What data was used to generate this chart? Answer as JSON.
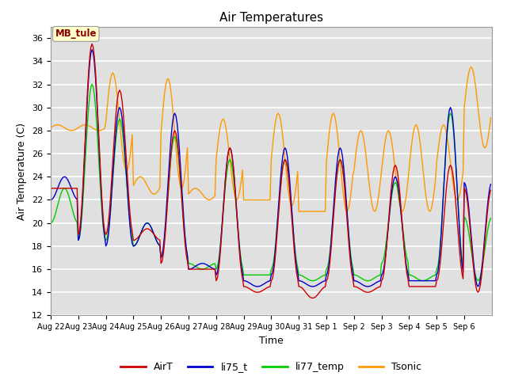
{
  "title": "Air Temperatures",
  "xlabel": "Time",
  "ylabel": "Air Temperature (C)",
  "ylim": [
    12,
    37
  ],
  "yticks": [
    12,
    14,
    16,
    18,
    20,
    22,
    24,
    26,
    28,
    30,
    32,
    34,
    36
  ],
  "colors": {
    "AirT": "#cc0000",
    "li75_t": "#0000cc",
    "li77_temp": "#00cc00",
    "Tsonic": "#ff9900"
  },
  "annotation_text": "MB_tule",
  "annotation_color": "#880000",
  "annotation_bg": "#ffffcc",
  "background_color": "#e0e0e0",
  "grid_color": "#ffffff",
  "xtick_labels": [
    "Aug 22",
    "Aug 23",
    "Aug 24",
    "Aug 25",
    "Aug 26",
    "Aug 27",
    "Aug 28",
    "Aug 29",
    "Aug 30",
    "Aug 31",
    "Sep 1",
    "Sep 2",
    "Sep 3",
    "Sep 4",
    "Sep 5",
    "Sep 6"
  ],
  "num_days": 16,
  "points_per_day": 24,
  "day_peaks_air": [
    23.0,
    35.5,
    31.5,
    19.5,
    28.0,
    16.0,
    26.5,
    14.0,
    25.5,
    13.5,
    25.5,
    14.0,
    25.0,
    14.5,
    25.0,
    14.0
  ],
  "day_troughs_air": [
    23.0,
    19.0,
    19.0,
    18.5,
    16.5,
    16.0,
    15.0,
    14.5,
    15.0,
    14.5,
    15.0,
    14.5,
    15.0,
    14.5,
    15.0,
    23.0
  ],
  "day_peaks_li75": [
    24.0,
    35.0,
    30.0,
    20.0,
    29.5,
    16.5,
    26.5,
    14.5,
    26.5,
    14.5,
    26.5,
    14.5,
    24.0,
    15.0,
    30.0,
    14.5
  ],
  "day_troughs_li75": [
    22.0,
    18.5,
    18.0,
    18.0,
    17.0,
    16.0,
    15.5,
    15.0,
    15.5,
    15.0,
    15.5,
    15.0,
    15.5,
    15.0,
    15.5,
    23.5
  ],
  "day_peaks_li77": [
    23.0,
    32.0,
    29.0,
    20.0,
    27.5,
    16.0,
    25.5,
    15.5,
    25.5,
    15.0,
    25.5,
    15.0,
    23.5,
    15.0,
    29.5,
    15.0
  ],
  "day_troughs_li77": [
    20.0,
    18.5,
    18.5,
    18.0,
    17.0,
    16.5,
    16.0,
    15.5,
    16.0,
    15.5,
    16.0,
    15.5,
    16.5,
    15.5,
    16.0,
    20.5
  ],
  "day_peaks_tsonic": [
    28.5,
    28.5,
    33.0,
    24.0,
    32.5,
    23.0,
    29.0,
    22.0,
    29.5,
    21.0,
    29.5,
    28.0,
    28.0,
    28.5,
    28.5,
    33.5
  ],
  "day_troughs_tsonic": [
    28.0,
    28.0,
    24.5,
    22.5,
    23.0,
    22.0,
    22.0,
    22.0,
    21.5,
    21.0,
    21.0,
    21.0,
    21.0,
    21.0,
    22.0,
    26.5
  ]
}
